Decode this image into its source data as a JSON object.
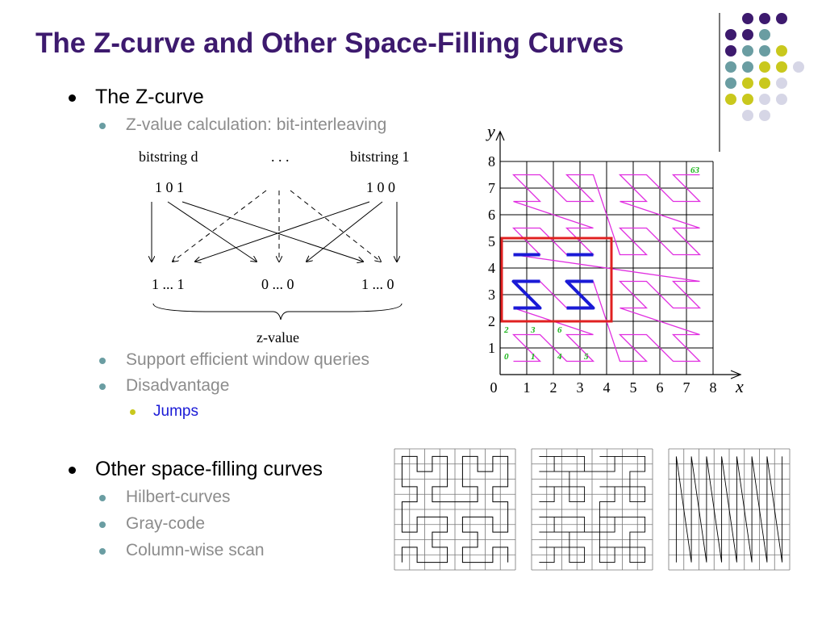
{
  "slide": {
    "title": "The Z-curve and Other Space-Filling Curves"
  },
  "bullets": {
    "zcurve": "The Z-curve",
    "zvalue_calc": "Z-value calculation: bit-interleaving",
    "window_queries": "Support efficient window queries",
    "disadvantage": "Disadvantage",
    "jumps": "Jumps",
    "other_curves": "Other space-filling curves",
    "hilbert": "Hilbert-curves",
    "gray_code": "Gray-code",
    "column_scan": "Column-wise scan"
  },
  "interleave_figure": {
    "bitstring_d": "bitstring d",
    "ellipsis": ". . .",
    "bitstring_1": "bitstring 1",
    "bits_d": "1 0 1",
    "bits_1": "1 0 0",
    "out_left": "1 ... 1",
    "out_mid": "0 ... 0",
    "out_right": "1 ... 0",
    "zvalue_label": "z-value"
  },
  "zgrid_figure": {
    "y_axis_label": "y",
    "x_axis_label": "x",
    "x_ticks": [
      "0",
      "1",
      "2",
      "3",
      "4",
      "5",
      "6",
      "7",
      "8"
    ],
    "y_ticks": [
      "1",
      "2",
      "3",
      "4",
      "5",
      "6",
      "7",
      "8"
    ],
    "cell_labels": {
      "c0": "0",
      "c1": "1",
      "c4": "4",
      "c5": "5",
      "c2": "2",
      "c3": "3",
      "c6": "6",
      "c63": "63"
    }
  },
  "colors": {
    "title": "#3d1a6e",
    "zcurve": "#e02ee0",
    "query_box": "#e02020",
    "query_path": "#1a1ad6",
    "cell_label": "#18b418",
    "dot_purple": "#3d1a6e",
    "dot_teal": "#6a9da2",
    "dot_yellow": "#c9c81d",
    "dot_lavender": "#d6d6e6"
  }
}
